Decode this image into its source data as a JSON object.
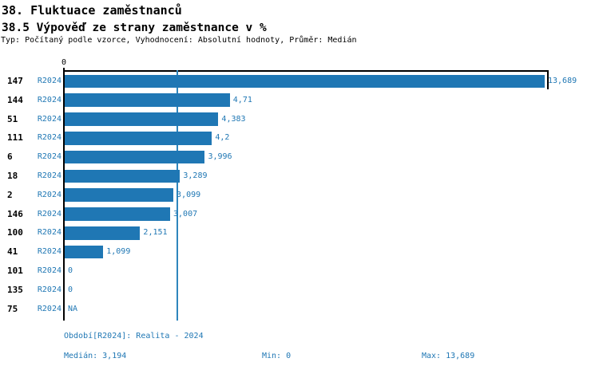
{
  "header": {
    "title": "38. Fluktuace zaměstnanců",
    "subtitle": "38.5 Výpověď ze strany zaměstnance v %",
    "meta": "Typ: Počítaný podle vzorce, Vyhodnocení: Absolutní hodnoty, Průměr: Medián"
  },
  "chart_data": {
    "type": "bar",
    "orientation": "horizontal",
    "title": "38.5 Výpověď ze strany zaměstnance v %",
    "value_unit": "%",
    "categories": [
      "147",
      "144",
      "51",
      "111",
      "6",
      "18",
      "2",
      "146",
      "100",
      "41",
      "101",
      "135",
      "75"
    ],
    "series_label": "R2024",
    "values": [
      13.689,
      4.71,
      4.383,
      4.2,
      3.996,
      3.289,
      3.099,
      3.007,
      2.151,
      1.099,
      0,
      0,
      null
    ],
    "value_labels": [
      "13,689",
      "4,71",
      "4,383",
      "4,2",
      "3,996",
      "3,289",
      "3,099",
      "3,007",
      "2,151",
      "1,099",
      "0",
      "0",
      "NA"
    ],
    "xlim": [
      0,
      13.689
    ],
    "axis_zero_label": "0",
    "grid": false,
    "median_value": 3.194,
    "stats": {
      "median": 3.194,
      "min": 0,
      "max": 13.689
    },
    "colors": {
      "bar": "#1f77b4",
      "median_line": "#2e86bd",
      "axis": "#000000",
      "blue_text": "#1f77b4"
    }
  },
  "footer": {
    "period": "Období[R2024]: Realita - 2024",
    "median": "Medián: 3,194",
    "min": "Min: 0",
    "max": "Max: 13,689"
  }
}
